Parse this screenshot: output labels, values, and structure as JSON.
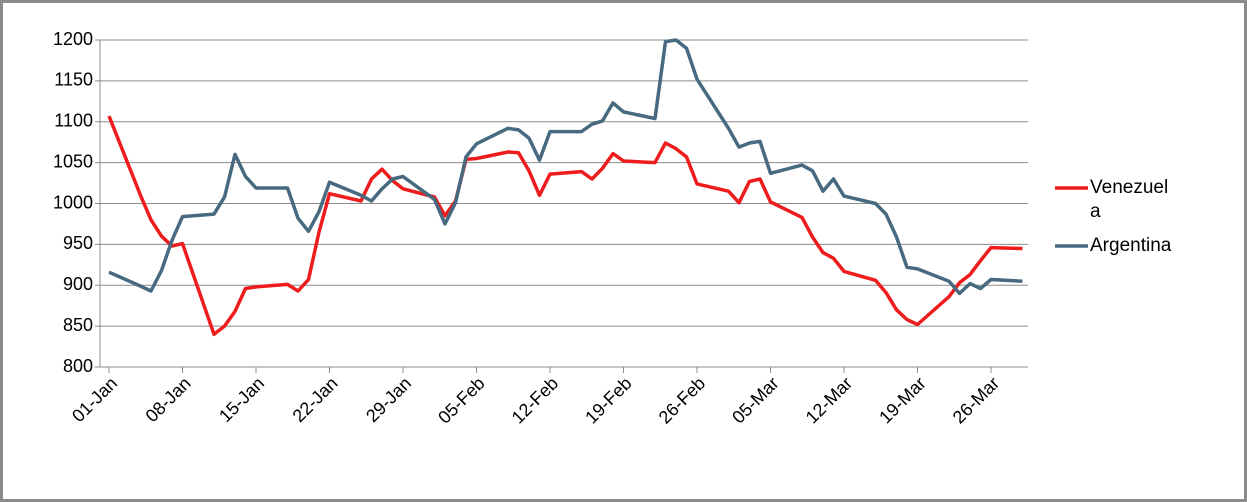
{
  "chart_data": {
    "type": "line",
    "x": [
      "01-Jan",
      "04-Jan",
      "05-Jan",
      "06-Jan",
      "07-Jan",
      "08-Jan",
      "11-Jan",
      "12-Jan",
      "13-Jan",
      "14-Jan",
      "15-Jan",
      "18-Jan",
      "19-Jan",
      "20-Jan",
      "21-Jan",
      "22-Jan",
      "25-Jan",
      "26-Jan",
      "27-Jan",
      "28-Jan",
      "29-Jan",
      "01-Feb",
      "02-Feb",
      "03-Feb",
      "04-Feb",
      "05-Feb",
      "08-Feb",
      "09-Feb",
      "10-Feb",
      "11-Feb",
      "12-Feb",
      "15-Feb",
      "16-Feb",
      "17-Feb",
      "18-Feb",
      "19-Feb",
      "22-Feb",
      "23-Feb",
      "24-Feb",
      "25-Feb",
      "26-Feb",
      "01-Mar",
      "02-Mar",
      "03-Mar",
      "04-Mar",
      "05-Mar",
      "08-Mar",
      "09-Mar",
      "10-Mar",
      "11-Mar",
      "12-Mar",
      "15-Mar",
      "16-Mar",
      "17-Mar",
      "18-Mar",
      "19-Mar",
      "22-Mar",
      "23-Mar",
      "24-Mar",
      "25-Mar",
      "26-Mar",
      "29-Mar"
    ],
    "series": [
      {
        "name": "Venezuela",
        "color": "#ee1c1c",
        "values": [
          1107,
          1010,
          980,
          960,
          948,
          951,
          840,
          850,
          868,
          896,
          898,
          901,
          893,
          907,
          965,
          1012,
          1003,
          1030,
          1042,
          1028,
          1018,
          1008,
          985,
          1003,
          1054,
          1055,
          1063,
          1062,
          1040,
          1010,
          1036,
          1039,
          1030,
          1043,
          1061,
          1052,
          1050,
          1074,
          1067,
          1057,
          1024,
          1015,
          1001,
          1027,
          1030,
          1002,
          983,
          959,
          940,
          933,
          917,
          906,
          891,
          870,
          858,
          852,
          886,
          903,
          913,
          930,
          946,
          945
        ]
      },
      {
        "name": "Argentina",
        "color": "#476a80",
        "values": [
          916,
          899,
          893,
          918,
          955,
          984,
          987,
          1008,
          1060,
          1033,
          1019,
          1019,
          982,
          966,
          990,
          1026,
          1010,
          1003,
          1018,
          1030,
          1033,
          1005,
          975,
          1001,
          1057,
          1073,
          1092,
          1090,
          1080,
          1053,
          1088,
          1088,
          1097,
          1101,
          1123,
          1112,
          1104,
          1198,
          1200,
          1190,
          1152,
          1092,
          1069,
          1074,
          1076,
          1037,
          1047,
          1040,
          1015,
          1030,
          1009,
          1000,
          987,
          959,
          922,
          920,
          905,
          890,
          902,
          896,
          907,
          905
        ]
      }
    ],
    "xticks": [
      "01-Jan",
      "08-Jan",
      "15-Jan",
      "22-Jan",
      "29-Jan",
      "05-Feb",
      "12-Feb",
      "19-Feb",
      "26-Feb",
      "05-Mar",
      "12-Mar",
      "19-Mar",
      "26-Mar"
    ],
    "ylim": [
      800,
      1200
    ],
    "yticks": [
      800,
      850,
      900,
      950,
      1000,
      1050,
      1100,
      1150,
      1200
    ],
    "grid": true,
    "legend": "right"
  }
}
